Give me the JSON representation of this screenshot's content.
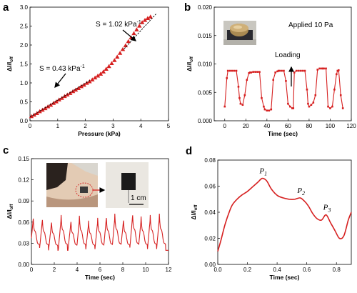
{
  "panels": {
    "a": {
      "letter": "a"
    },
    "b": {
      "letter": "b"
    },
    "c": {
      "letter": "c"
    },
    "d": {
      "letter": "d"
    }
  },
  "colors": {
    "series": "#d62020",
    "axis": "#000000",
    "fit_line": "#000000"
  },
  "chart_data": [
    {
      "id": "a",
      "type": "scatter",
      "xlabel": "Pressure (kPa)",
      "ylabel": "ΔI/I_off",
      "xlim": [
        0,
        5
      ],
      "ylim": [
        0,
        3.0
      ],
      "xticks": [
        0,
        1,
        2,
        3,
        4,
        5
      ],
      "yticks": [
        0.0,
        0.5,
        1.0,
        1.5,
        2.0,
        2.5,
        3.0
      ],
      "series": [
        {
          "marker": "triangle",
          "x": [
            0.05,
            0.15,
            0.25,
            0.35,
            0.45,
            0.55,
            0.65,
            0.75,
            0.85,
            0.95,
            1.05,
            1.15,
            1.25,
            1.35,
            1.45,
            1.55,
            1.65,
            1.75,
            1.85,
            1.95,
            2.05,
            2.15,
            2.25,
            2.35,
            2.45,
            2.55,
            2.65,
            2.75,
            2.85,
            2.95,
            3.05,
            3.15,
            3.25,
            3.35,
            3.45,
            3.55,
            3.65,
            3.75,
            3.85,
            3.95,
            4.05,
            4.15,
            4.25,
            4.35
          ],
          "y": [
            0.12,
            0.16,
            0.2,
            0.25,
            0.29,
            0.33,
            0.38,
            0.42,
            0.47,
            0.51,
            0.56,
            0.6,
            0.65,
            0.69,
            0.73,
            0.78,
            0.82,
            0.86,
            0.91,
            0.95,
            1.0,
            1.04,
            1.09,
            1.14,
            1.19,
            1.24,
            1.3,
            1.37,
            1.44,
            1.52,
            1.6,
            1.69,
            1.79,
            1.89,
            1.99,
            2.1,
            2.2,
            2.31,
            2.41,
            2.51,
            2.6,
            2.66,
            2.71,
            2.75
          ]
        }
      ],
      "fits": [
        {
          "x": [
            0.0,
            2.2
          ],
          "y": [
            0.1,
            1.08
          ],
          "slope_label": "S = 0.43 kPa",
          "superscript": "-1"
        },
        {
          "x": [
            3.4,
            4.55
          ],
          "y": [
            1.9,
            2.82
          ],
          "slope_label": "S = 1.02 kPa",
          "superscript": "-1"
        }
      ]
    },
    {
      "id": "b",
      "type": "line",
      "xlabel": "Time (sec)",
      "ylabel": "ΔI/I_off",
      "xlim": [
        -10,
        120
      ],
      "ylim": [
        0,
        0.02
      ],
      "xticks": [
        0,
        20,
        40,
        60,
        80,
        100,
        120
      ],
      "yticks": [
        0.0,
        0.005,
        0.01,
        0.015,
        0.02
      ],
      "ytick_labels": [
        "0.000",
        "0.005",
        "0.010",
        "0.015",
        "0.020"
      ],
      "annotations": {
        "applied": "Applied 10 Pa",
        "loading": "Loading"
      },
      "series": [
        {
          "marker": "square",
          "x": [
            0,
            2,
            3,
            5,
            7,
            9,
            11,
            13,
            14,
            15,
            17,
            19,
            21,
            23,
            24,
            25,
            27,
            29,
            31,
            33,
            35,
            37,
            38,
            40,
            42,
            44,
            46,
            48,
            50,
            51,
            52,
            54,
            56,
            58,
            60,
            62,
            64,
            65,
            66,
            68,
            70,
            72,
            74,
            76,
            78,
            79,
            80,
            82,
            84,
            86,
            88,
            90,
            92,
            93,
            94,
            96,
            98,
            100,
            102,
            104,
            106,
            107,
            108,
            110,
            112
          ],
          "y": [
            0.0025,
            0.0075,
            0.0088,
            0.0088,
            0.0088,
            0.0088,
            0.0088,
            0.006,
            0.004,
            0.003,
            0.0028,
            0.0045,
            0.0072,
            0.0084,
            0.0085,
            0.0085,
            0.0086,
            0.0086,
            0.0086,
            0.0086,
            0.004,
            0.0025,
            0.002,
            0.0018,
            0.0018,
            0.002,
            0.0072,
            0.0085,
            0.0087,
            0.0088,
            0.0088,
            0.0088,
            0.0088,
            0.007,
            0.003,
            0.0025,
            0.0022,
            0.0022,
            0.0085,
            0.0088,
            0.0088,
            0.0088,
            0.0088,
            0.0088,
            0.0055,
            0.003,
            0.0025,
            0.0028,
            0.0032,
            0.0045,
            0.009,
            0.0092,
            0.0092,
            0.0092,
            0.0092,
            0.0092,
            0.0025,
            0.0022,
            0.0025,
            0.0055,
            0.0082,
            0.0088,
            0.0089,
            0.0045,
            0.0022
          ]
        }
      ]
    },
    {
      "id": "c",
      "type": "line",
      "xlabel": "Time (sec)",
      "ylabel": "ΔI/I_off",
      "xlim": [
        0,
        12
      ],
      "ylim": [
        0,
        0.15
      ],
      "xticks": [
        0,
        2,
        4,
        6,
        8,
        10,
        12
      ],
      "yticks": [
        0.0,
        0.03,
        0.06,
        0.09,
        0.12,
        0.15
      ],
      "ytick_labels": [
        "0.00",
        "0.03",
        "0.06",
        "0.09",
        "0.12",
        "0.15"
      ],
      "annotations": {
        "scale_bar": "1 cm"
      },
      "series": [
        {
          "pulse_times": [
            0.15,
            0.95,
            1.75,
            2.6,
            3.45,
            4.2,
            5.0,
            5.8,
            6.55,
            7.3,
            8.05,
            8.85,
            9.6,
            10.4,
            11.2
          ],
          "pulse_peaks": [
            0.068,
            0.066,
            0.062,
            0.07,
            0.063,
            0.069,
            0.062,
            0.066,
            0.069,
            0.072,
            0.065,
            0.073,
            0.068,
            0.07,
            0.072
          ],
          "baseline_min": 0.02
        }
      ]
    },
    {
      "id": "d",
      "type": "line",
      "xlabel": "Time (sec)",
      "ylabel": "ΔI/I_off",
      "xlim": [
        0,
        0.9
      ],
      "ylim": [
        0,
        0.08
      ],
      "xticks": [
        0.0,
        0.2,
        0.4,
        0.6,
        0.8
      ],
      "yticks": [
        0.0,
        0.02,
        0.04,
        0.06,
        0.08
      ],
      "ytick_labels": [
        "0.00",
        "0.02",
        "0.04",
        "0.06",
        "0.08"
      ],
      "peak_labels": [
        {
          "text": "P",
          "sub": "1",
          "x": 0.3,
          "y": 0.066
        },
        {
          "text": "P",
          "sub": "2",
          "x": 0.555,
          "y": 0.051
        },
        {
          "text": "P",
          "sub": "3",
          "x": 0.73,
          "y": 0.038
        }
      ],
      "series": [
        {
          "x": [
            0.0,
            0.02,
            0.05,
            0.08,
            0.1,
            0.13,
            0.16,
            0.2,
            0.24,
            0.27,
            0.3,
            0.33,
            0.36,
            0.4,
            0.44,
            0.48,
            0.52,
            0.555,
            0.58,
            0.61,
            0.64,
            0.67,
            0.7,
            0.73,
            0.76,
            0.79,
            0.82,
            0.85,
            0.88,
            0.9
          ],
          "y": [
            0.01,
            0.018,
            0.031,
            0.041,
            0.046,
            0.05,
            0.053,
            0.056,
            0.06,
            0.063,
            0.066,
            0.064,
            0.058,
            0.053,
            0.051,
            0.05,
            0.05,
            0.051,
            0.049,
            0.045,
            0.039,
            0.035,
            0.034,
            0.038,
            0.032,
            0.026,
            0.02,
            0.022,
            0.034,
            0.04
          ]
        }
      ]
    }
  ]
}
